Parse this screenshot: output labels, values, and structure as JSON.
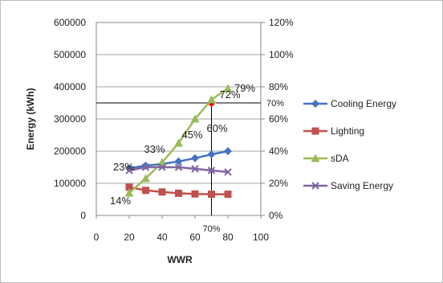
{
  "chart_data": {
    "type": "line",
    "title": "",
    "xlabel": "WWR",
    "ylabel": "Energy (kWh)",
    "y2label": "",
    "x": [
      20,
      30,
      40,
      50,
      60,
      70,
      80
    ],
    "xlim": [
      0,
      100
    ],
    "xticks": [
      "0",
      "20",
      "40",
      "60",
      "80",
      "100"
    ],
    "ylim": [
      0,
      600000
    ],
    "yticks": [
      "0",
      "100000",
      "200000",
      "300000",
      "400000",
      "500000",
      "600000"
    ],
    "y2lim": [
      0,
      1.2
    ],
    "y2ticks": [
      "0%",
      "20%",
      "40%",
      "60%",
      "80%",
      "100%",
      "120%"
    ],
    "grid": true,
    "legend_position": "right",
    "series": [
      {
        "name": "Cooling Energy",
        "axis": "left",
        "color": "#4472c4",
        "marker": "diamond",
        "values": [
          147000,
          155000,
          160000,
          168000,
          178000,
          190000,
          200000
        ]
      },
      {
        "name": "Lighting",
        "axis": "left",
        "color": "#c0504d",
        "marker": "square",
        "values": [
          88000,
          78000,
          73000,
          69000,
          67000,
          66000,
          66000
        ]
      },
      {
        "name": "sDA",
        "axis": "right",
        "color": "#9bbb59",
        "marker": "triangle",
        "values": [
          0.14,
          0.23,
          0.33,
          0.45,
          0.6,
          0.72,
          0.79
        ]
      },
      {
        "name": "Saving Energy",
        "axis": "right",
        "color": "#8064a2",
        "marker": "x",
        "values": [
          0.28,
          0.3,
          0.3,
          0.3,
          0.29,
          0.28,
          0.27
        ]
      }
    ],
    "data_labels": [
      {
        "text": "14%",
        "x": 20,
        "y2": 0.14
      },
      {
        "text": "23%",
        "x": 20,
        "y2": 0.23
      },
      {
        "text": "33%",
        "x": 30,
        "y2": 0.33
      },
      {
        "text": "45%",
        "x": 50,
        "y2": 0.45
      },
      {
        "text": "60%",
        "x": 70,
        "y2": 0.6
      },
      {
        "text": "72%",
        "x": 70,
        "y2": 0.72
      },
      {
        "text": "79%",
        "x": 80,
        "y2": 0.79
      }
    ],
    "reference": {
      "y2": 0.7,
      "x": 70,
      "y_label": "70%",
      "x_label": "70%",
      "point_color": "#ff0000"
    }
  }
}
